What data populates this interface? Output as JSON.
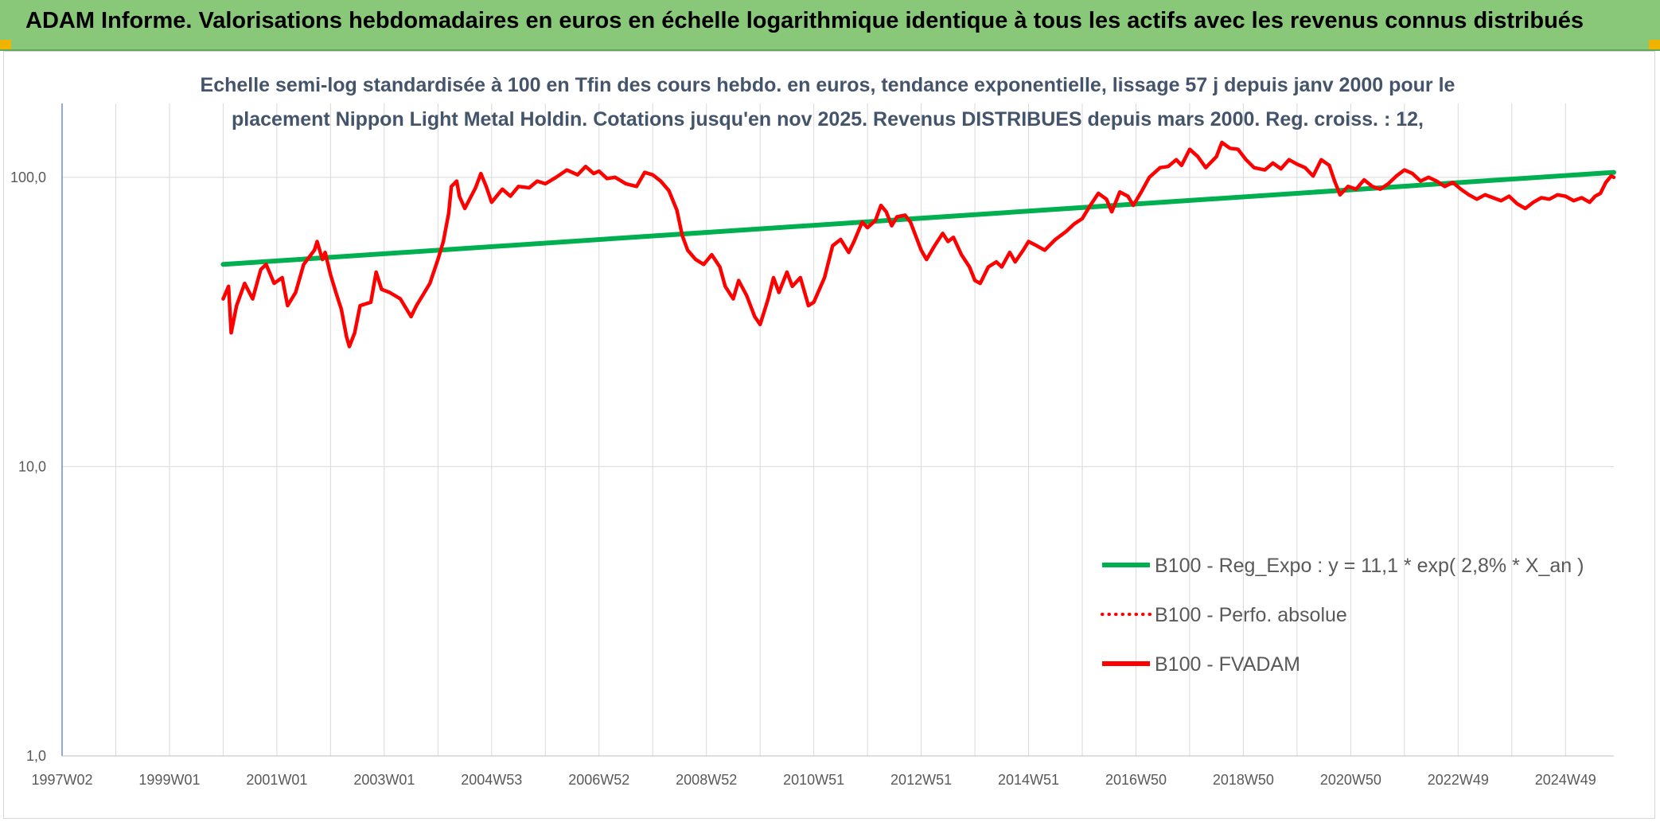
{
  "banner": {
    "title": "ADAM Informe. Valorisations hebdomadaires en euros en échelle logarithmique identique à tous les actifs avec les revenus connus distribués"
  },
  "colors": {
    "banner_bg": "#88c878",
    "regression": "#00b050",
    "fvadam": "#ff0000",
    "perfo": "#ff0000",
    "grid": "#d9d9d9",
    "accent_corner": "#f0b400"
  },
  "chart_data": {
    "type": "line",
    "subtitle_lines": [
      "Echelle semi-log standardisée à 100 en Tfin des cours hebdo. en euros, tendance exponentielle, lissage 57 j depuis janv 2000 pour le",
      "placement Nippon Light Metal Holdin. Cotations jusqu'en nov 2025. Revenus DISTRIBUES depuis mars 2000. Reg. croiss. : 12,"
    ],
    "y_scale": "log",
    "ylim": [
      1,
      180
    ],
    "y_ticks": [
      {
        "value": 1,
        "label": "1,0"
      },
      {
        "value": 10,
        "label": "10,0"
      },
      {
        "value": 100,
        "label": "100,0"
      }
    ],
    "x_range": [
      1997.0,
      2025.9
    ],
    "x_ticks": [
      {
        "x": 1997.0,
        "label": "1997W02"
      },
      {
        "x": 1999.0,
        "label": "1999W01"
      },
      {
        "x": 2001.0,
        "label": "2001W01"
      },
      {
        "x": 2003.0,
        "label": "2003W01"
      },
      {
        "x": 2005.0,
        "label": "2004W53"
      },
      {
        "x": 2007.0,
        "label": "2006W52"
      },
      {
        "x": 2009.0,
        "label": "2008W52"
      },
      {
        "x": 2011.0,
        "label": "2010W51"
      },
      {
        "x": 2013.0,
        "label": "2012W51"
      },
      {
        "x": 2015.0,
        "label": "2014W51"
      },
      {
        "x": 2017.0,
        "label": "2016W50"
      },
      {
        "x": 2019.0,
        "label": "2018W50"
      },
      {
        "x": 2021.0,
        "label": "2020W50"
      },
      {
        "x": 2023.0,
        "label": "2022W49"
      },
      {
        "x": 2025.0,
        "label": "2024W49"
      }
    ],
    "grid": true,
    "legend_position": "bottom-right",
    "series": [
      {
        "name": "B100 - Reg_Expo : y = 11,1 * exp( 2,8% *  X_an )",
        "color": "#00b050",
        "style": "solid",
        "points": [
          [
            2000.0,
            50.0
          ],
          [
            2025.9,
            104.0
          ]
        ]
      },
      {
        "name": "B100 - Perfo. absolue",
        "color": "#ff0000",
        "style": "dotted",
        "points": []
      },
      {
        "name": "B100 - FVADAM",
        "color": "#ff0000",
        "style": "solid",
        "points": [
          [
            2000.0,
            38
          ],
          [
            2000.1,
            42
          ],
          [
            2000.15,
            29
          ],
          [
            2000.25,
            36
          ],
          [
            2000.4,
            43
          ],
          [
            2000.55,
            38
          ],
          [
            2000.7,
            48
          ],
          [
            2000.8,
            50
          ],
          [
            2000.95,
            43
          ],
          [
            2001.1,
            45
          ],
          [
            2001.2,
            36
          ],
          [
            2001.35,
            40
          ],
          [
            2001.5,
            50
          ],
          [
            2001.7,
            56
          ],
          [
            2001.75,
            60
          ],
          [
            2001.85,
            52
          ],
          [
            2001.9,
            55
          ],
          [
            2002.0,
            46
          ],
          [
            2002.1,
            40
          ],
          [
            2002.2,
            35
          ],
          [
            2002.3,
            28
          ],
          [
            2002.35,
            26
          ],
          [
            2002.45,
            29
          ],
          [
            2002.55,
            36
          ],
          [
            2002.75,
            37
          ],
          [
            2002.85,
            47
          ],
          [
            2002.95,
            41
          ],
          [
            2003.1,
            40
          ],
          [
            2003.3,
            38
          ],
          [
            2003.5,
            33
          ],
          [
            2003.6,
            36
          ],
          [
            2003.75,
            40
          ],
          [
            2003.85,
            43
          ],
          [
            2004.0,
            52
          ],
          [
            2004.1,
            60
          ],
          [
            2004.2,
            75
          ],
          [
            2004.25,
            93
          ],
          [
            2004.35,
            97
          ],
          [
            2004.4,
            86
          ],
          [
            2004.5,
            78
          ],
          [
            2004.7,
            92
          ],
          [
            2004.8,
            103
          ],
          [
            2004.9,
            93
          ],
          [
            2005.0,
            82
          ],
          [
            2005.2,
            91
          ],
          [
            2005.35,
            86
          ],
          [
            2005.5,
            93
          ],
          [
            2005.7,
            92
          ],
          [
            2005.85,
            97
          ],
          [
            2006.0,
            95
          ],
          [
            2006.2,
            100
          ],
          [
            2006.4,
            106
          ],
          [
            2006.6,
            102
          ],
          [
            2006.75,
            109
          ],
          [
            2006.9,
            103
          ],
          [
            2007.0,
            105
          ],
          [
            2007.15,
            99
          ],
          [
            2007.3,
            100
          ],
          [
            2007.5,
            95
          ],
          [
            2007.7,
            93
          ],
          [
            2007.85,
            104
          ],
          [
            2008.0,
            102
          ],
          [
            2008.15,
            97
          ],
          [
            2008.3,
            90
          ],
          [
            2008.45,
            77
          ],
          [
            2008.55,
            63
          ],
          [
            2008.65,
            56
          ],
          [
            2008.8,
            52
          ],
          [
            2008.95,
            50
          ],
          [
            2009.1,
            54
          ],
          [
            2009.25,
            49
          ],
          [
            2009.35,
            42
          ],
          [
            2009.5,
            38
          ],
          [
            2009.6,
            44
          ],
          [
            2009.75,
            39
          ],
          [
            2009.9,
            33
          ],
          [
            2010.0,
            31
          ],
          [
            2010.15,
            38
          ],
          [
            2010.25,
            45
          ],
          [
            2010.35,
            40
          ],
          [
            2010.5,
            47
          ],
          [
            2010.6,
            42
          ],
          [
            2010.75,
            45
          ],
          [
            2010.9,
            36
          ],
          [
            2011.0,
            37
          ],
          [
            2011.2,
            45
          ],
          [
            2011.35,
            58
          ],
          [
            2011.5,
            61
          ],
          [
            2011.65,
            55
          ],
          [
            2011.75,
            60
          ],
          [
            2011.9,
            70
          ],
          [
            2012.0,
            67
          ],
          [
            2012.15,
            71
          ],
          [
            2012.25,
            80
          ],
          [
            2012.35,
            76
          ],
          [
            2012.45,
            68
          ],
          [
            2012.55,
            73
          ],
          [
            2012.7,
            74
          ],
          [
            2012.8,
            70
          ],
          [
            2013.0,
            56
          ],
          [
            2013.1,
            52
          ],
          [
            2013.25,
            58
          ],
          [
            2013.4,
            64
          ],
          [
            2013.5,
            60
          ],
          [
            2013.6,
            62
          ],
          [
            2013.75,
            54
          ],
          [
            2013.9,
            49
          ],
          [
            2014.0,
            44
          ],
          [
            2014.1,
            43
          ],
          [
            2014.25,
            49
          ],
          [
            2014.4,
            51
          ],
          [
            2014.5,
            49
          ],
          [
            2014.65,
            55
          ],
          [
            2014.75,
            51
          ],
          [
            2014.9,
            56
          ],
          [
            2015.0,
            60
          ],
          [
            2015.15,
            58
          ],
          [
            2015.3,
            56
          ],
          [
            2015.5,
            61
          ],
          [
            2015.7,
            65
          ],
          [
            2015.85,
            69
          ],
          [
            2016.0,
            72
          ],
          [
            2016.15,
            80
          ],
          [
            2016.3,
            88
          ],
          [
            2016.45,
            84
          ],
          [
            2016.55,
            76
          ],
          [
            2016.7,
            89
          ],
          [
            2016.85,
            86
          ],
          [
            2016.95,
            80
          ],
          [
            2017.1,
            89
          ],
          [
            2017.25,
            100
          ],
          [
            2017.45,
            108
          ],
          [
            2017.6,
            109
          ],
          [
            2017.75,
            115
          ],
          [
            2017.85,
            110
          ],
          [
            2018.0,
            125
          ],
          [
            2018.15,
            118
          ],
          [
            2018.3,
            108
          ],
          [
            2018.5,
            118
          ],
          [
            2018.6,
            132
          ],
          [
            2018.75,
            126
          ],
          [
            2018.9,
            125
          ],
          [
            2019.05,
            115
          ],
          [
            2019.2,
            108
          ],
          [
            2019.4,
            106
          ],
          [
            2019.55,
            112
          ],
          [
            2019.7,
            107
          ],
          [
            2019.85,
            115
          ],
          [
            2020.0,
            111
          ],
          [
            2020.15,
            108
          ],
          [
            2020.3,
            101
          ],
          [
            2020.45,
            115
          ],
          [
            2020.6,
            110
          ],
          [
            2020.7,
            97
          ],
          [
            2020.8,
            87
          ],
          [
            2020.95,
            93
          ],
          [
            2021.1,
            91
          ],
          [
            2021.25,
            98
          ],
          [
            2021.4,
            93
          ],
          [
            2021.55,
            91
          ],
          [
            2021.7,
            95
          ],
          [
            2021.85,
            101
          ],
          [
            2022.0,
            106
          ],
          [
            2022.15,
            103
          ],
          [
            2022.3,
            97
          ],
          [
            2022.45,
            100
          ],
          [
            2022.6,
            97
          ],
          [
            2022.75,
            93
          ],
          [
            2022.9,
            96
          ],
          [
            2023.05,
            91
          ],
          [
            2023.2,
            87
          ],
          [
            2023.35,
            84
          ],
          [
            2023.5,
            87
          ],
          [
            2023.65,
            85
          ],
          [
            2023.8,
            83
          ],
          [
            2023.95,
            86
          ],
          [
            2024.1,
            81
          ],
          [
            2024.25,
            78
          ],
          [
            2024.4,
            82
          ],
          [
            2024.55,
            85
          ],
          [
            2024.7,
            84
          ],
          [
            2024.85,
            87
          ],
          [
            2025.0,
            86
          ],
          [
            2025.15,
            83
          ],
          [
            2025.3,
            85
          ],
          [
            2025.45,
            82
          ],
          [
            2025.55,
            86
          ],
          [
            2025.65,
            88
          ],
          [
            2025.75,
            96
          ],
          [
            2025.85,
            101
          ],
          [
            2025.9,
            100
          ]
        ]
      }
    ]
  }
}
